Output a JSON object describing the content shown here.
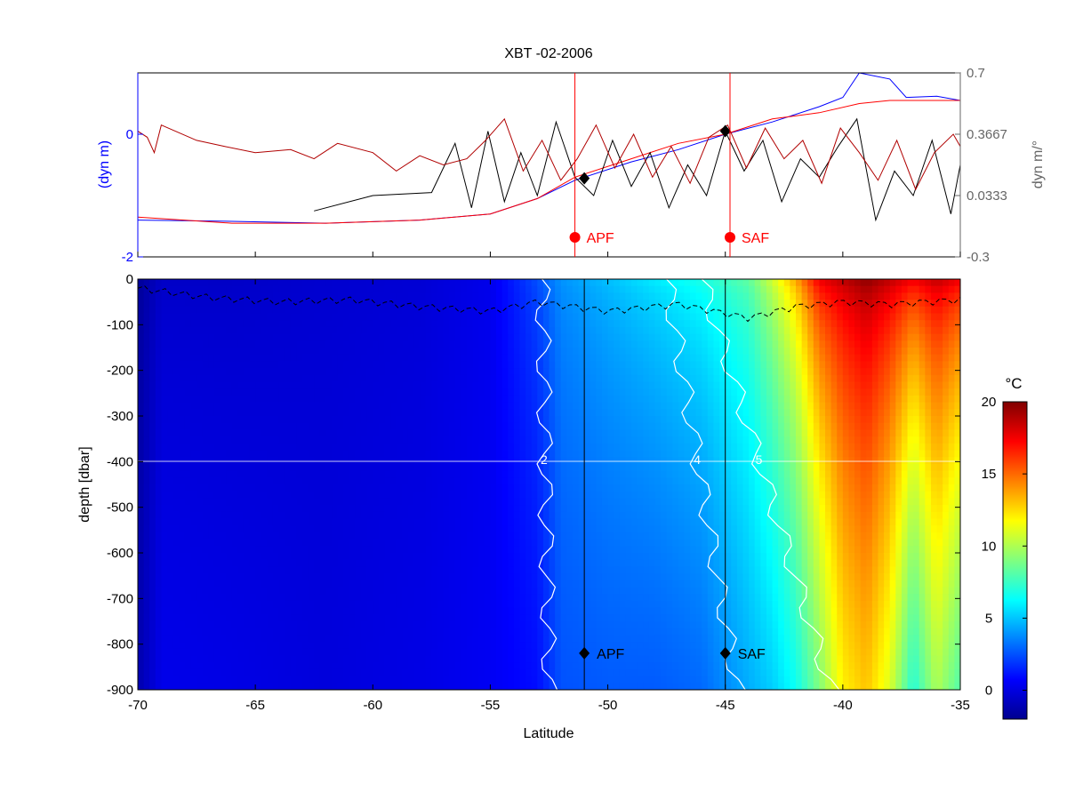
{
  "chart_data": [
    {
      "type": "line",
      "panel": "top",
      "title": "XBT -02-2006",
      "ylabel_left": "(dyn m)",
      "ylabel_right": "dyn m/°",
      "ylim_left": [
        -2,
        1
      ],
      "yticks_left": [
        "0",
        "-2"
      ],
      "ylim_right": [
        -0.3,
        0.7
      ],
      "yticks_right": [
        "0.7",
        "0.3667",
        "0.0333",
        "-0.3"
      ],
      "xlim": [
        -70,
        -35
      ],
      "colors": {
        "left_axis": "#0000ff",
        "right_axis": "#666666",
        "fronts": "#ff0000",
        "blue_series": "#0000ff",
        "red_series": "#cc0000",
        "black_series": "#000000"
      },
      "fronts": [
        {
          "name": "APF",
          "lat": -51.4
        },
        {
          "name": "SAF",
          "lat": -44.8
        }
      ],
      "series": [
        {
          "color": "blue",
          "x": [
            -70,
            -66,
            -62,
            -58,
            -55,
            -53,
            -51.4,
            -49,
            -47,
            -45,
            -43,
            -41,
            -40,
            -39.3,
            -38,
            -37.3,
            -36,
            -35
          ],
          "y": [
            -1.4,
            -1.42,
            -1.45,
            -1.4,
            -1.3,
            -1.05,
            -0.75,
            -0.45,
            -0.25,
            0.0,
            0.2,
            0.45,
            0.6,
            1.0,
            0.9,
            0.6,
            0.62,
            0.55
          ]
        },
        {
          "color": "red",
          "x": [
            -70,
            -66,
            -62,
            -58,
            -55,
            -53,
            -51.4,
            -49,
            -47,
            -45,
            -43,
            -41,
            -39.3,
            -38,
            -36,
            -35
          ],
          "y": [
            -1.35,
            -1.45,
            -1.45,
            -1.4,
            -1.3,
            -1.05,
            -0.7,
            -0.4,
            -0.15,
            0.0,
            0.25,
            0.35,
            0.5,
            0.55,
            0.55,
            0.55
          ]
        },
        {
          "color": "black",
          "x": [
            -62.5,
            -60,
            -57.5,
            -56.5,
            -55.8,
            -55.1,
            -54.4,
            -53.7,
            -53,
            -52.2,
            -51.4,
            -50.6,
            -49.8,
            -49.0,
            -48.2,
            -47.4,
            -46.6,
            -45.8,
            -45.0,
            -44.2,
            -43.4,
            -42.6,
            -41.8,
            -41.0,
            -40.2,
            -39.4,
            -38.6,
            -37.8,
            -37.0,
            -36.2,
            -35.4,
            -35
          ],
          "y": [
            -1.25,
            -1.0,
            -0.95,
            -0.15,
            -1.2,
            0.05,
            -1.1,
            -0.3,
            -1.0,
            0.2,
            -0.7,
            -1.0,
            -0.1,
            -0.85,
            -0.3,
            -1.2,
            -0.5,
            -1.0,
            0.05,
            -0.6,
            -0.1,
            -1.1,
            -0.4,
            -0.7,
            -0.2,
            0.25,
            -1.4,
            -0.6,
            -1.0,
            -0.1,
            -1.3,
            -0.5
          ]
        },
        {
          "color": "darkred",
          "x": [
            -70,
            -69.6,
            -69.3,
            -69,
            -67.5,
            -66.3,
            -65,
            -63.5,
            -62.5,
            -61.5,
            -60,
            -59,
            -58,
            -57,
            -56,
            -55.2,
            -54.4,
            -53.6,
            -52.8,
            -52,
            -51.3,
            -50.5,
            -49.7,
            -48.9,
            -48.1,
            -47.3,
            -46.5,
            -45.7,
            -44.9,
            -44.1,
            -43.3,
            -42.5,
            -41.7,
            -40.9,
            -40.1,
            -39.3,
            -38.5,
            -37.7,
            -36.9,
            -36.1,
            -35.3,
            -35
          ],
          "y": [
            0.05,
            -0.05,
            -0.3,
            0.15,
            -0.1,
            -0.2,
            -0.3,
            -0.25,
            -0.4,
            -0.15,
            -0.3,
            -0.6,
            -0.35,
            -0.5,
            -0.4,
            -0.1,
            0.25,
            -0.6,
            -0.1,
            -0.75,
            -0.4,
            0.15,
            -0.55,
            0.0,
            -0.7,
            -0.2,
            -0.8,
            -0.05,
            0.15,
            -0.55,
            0.1,
            -0.4,
            -0.1,
            -0.8,
            0.1,
            -0.3,
            -0.75,
            -0.1,
            -0.9,
            -0.3,
            0.0,
            -0.2
          ]
        }
      ],
      "markers": [
        {
          "shape": "diamond",
          "x": -51.0,
          "y": -0.72
        },
        {
          "shape": "diamond",
          "x": -45.0,
          "y": 0.05
        }
      ]
    },
    {
      "type": "heatmap",
      "panel": "bottom",
      "xlabel": "Latitude",
      "ylabel": "depth [dbar]",
      "xlim": [
        -70,
        -35
      ],
      "xticks": [
        "-70",
        "-65",
        "-60",
        "-55",
        "-50",
        "-45",
        "-40",
        "-35"
      ],
      "ylim": [
        -900,
        0
      ],
      "yticks": [
        "0",
        "-100",
        "-200",
        "-300",
        "-400",
        "-500",
        "-600",
        "-700",
        "-800",
        "-900"
      ],
      "colorbar": {
        "unit": "°C",
        "range": [
          -2,
          20
        ],
        "ticks": [
          "20",
          "15",
          "10",
          "5",
          "0"
        ]
      },
      "fronts": [
        {
          "name": "APF",
          "lat": -51.0,
          "marker_depth": -820
        },
        {
          "name": "SAF",
          "lat": -45.0,
          "marker_depth": -820
        }
      ],
      "surface_temperature": {
        "lat": [
          -70,
          -69,
          -66,
          -62,
          -58,
          -55,
          -53,
          -52,
          -50,
          -48,
          -46,
          -44,
          -43,
          -42,
          -41,
          -40,
          -39,
          -38,
          -37,
          -36,
          -35
        ],
        "value": [
          -1.5,
          -0.5,
          -0.5,
          -0.3,
          -0.2,
          0.3,
          2.5,
          4.0,
          5.0,
          6.0,
          7.0,
          8.5,
          11,
          14,
          18,
          19,
          20,
          19,
          18,
          19,
          18
        ]
      },
      "deep_temperature": {
        "lat": [
          -70,
          -69,
          -66,
          -62,
          -58,
          -55,
          -53,
          -52,
          -50,
          -48,
          -46,
          -44,
          -43,
          -42,
          -41,
          -40,
          -39,
          -38,
          -37,
          -36,
          -35
        ],
        "value": [
          -1.0,
          0.3,
          0.2,
          0.0,
          0.2,
          0.5,
          1.0,
          2.5,
          2.7,
          2.7,
          3.0,
          4.5,
          5.2,
          6.5,
          9.0,
          12,
          13,
          11,
          7,
          10,
          8
        ]
      },
      "contours": [
        {
          "label": "2",
          "lat_at_surface": -52.8,
          "lat_at_bottom": -52.5
        },
        {
          "label": "4",
          "lat_at_surface": -47.5,
          "lat_at_bottom": -44.5
        },
        {
          "label": "5",
          "lat_at_surface": -46.0,
          "lat_at_bottom": -40.5
        }
      ],
      "dashed_line": "mixed-layer depth",
      "dashed_line_depth": {
        "lat": [
          -70,
          -67,
          -64,
          -61,
          -58,
          -55,
          -53,
          -50,
          -47,
          -44,
          -42,
          -40,
          -38,
          -35
        ],
        "value": [
          -20,
          -40,
          -50,
          -45,
          -60,
          -70,
          -50,
          -70,
          -55,
          -85,
          -60,
          -50,
          -55,
          -45
        ]
      }
    }
  ]
}
